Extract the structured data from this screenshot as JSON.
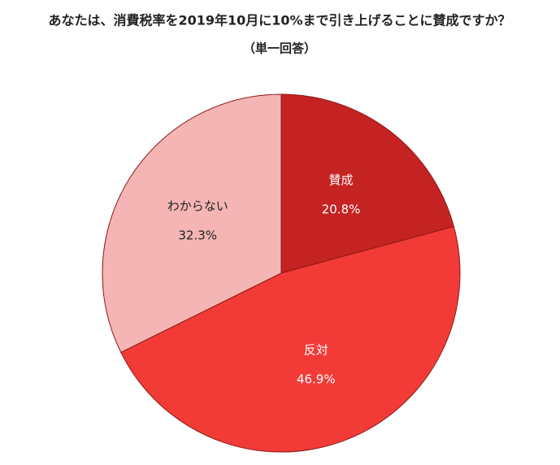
{
  "chart_data": {
    "type": "pie",
    "title": "あなたは、消費税率を2019年10月に10%まで引き上げることに賛成ですか？",
    "subtitle": "（単一回答）",
    "categories": [
      "賛成",
      "反対",
      "わからない"
    ],
    "values": [
      20.8,
      46.9,
      32.3
    ],
    "value_labels": [
      "20.8%",
      "46.9%",
      "32.3%"
    ],
    "colors": [
      "#c42321",
      "#f23b37",
      "#f5b5b5"
    ],
    "label_colors": [
      "#ffffff",
      "#ffffff",
      "#222222"
    ]
  }
}
